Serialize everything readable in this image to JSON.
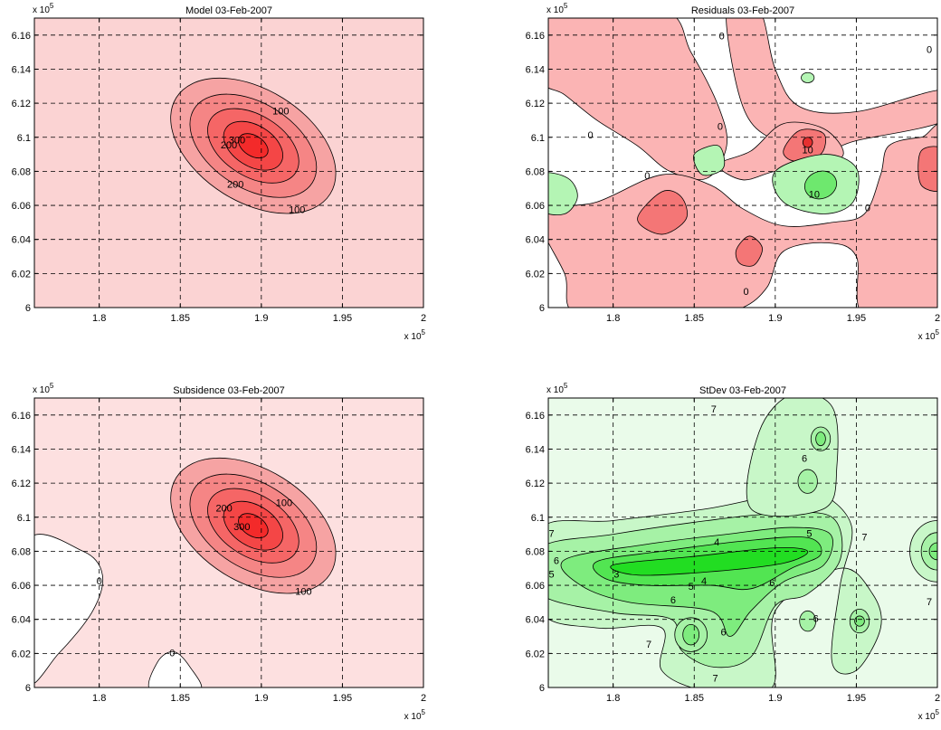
{
  "figure": {
    "panels": [
      {
        "id": "model",
        "title": "Model 03-Feb-2007",
        "fill_base": "#fbd3d3"
      },
      {
        "id": "residuals",
        "title": "Residuals 03-Feb-2007",
        "fill_base": "#ffffff"
      },
      {
        "id": "subsidence",
        "title": "Subsidence 03-Feb-2007",
        "fill_base": "#fde0e0"
      },
      {
        "id": "stdev",
        "title": "StDev 03-Feb-2007",
        "fill_base": "#eafbea"
      }
    ]
  },
  "chart_data": [
    {
      "type": "heatmap",
      "subtype": "filled-contour",
      "title": "Model 03-Feb-2007",
      "xlabel": "",
      "ylabel": "",
      "xlim": [
        1.76,
        2.0
      ],
      "ylim": [
        6.0,
        6.17
      ],
      "x_exponent": "x 10^5",
      "y_exponent": "x 10^5",
      "xticks": [
        "1.8",
        "1.85",
        "1.9",
        "1.95",
        "2"
      ],
      "yticks": [
        "6",
        "6.02",
        "6.04",
        "6.06",
        "6.08",
        "6.1",
        "6.12",
        "6.14",
        "6.16"
      ],
      "grid": true,
      "center": [
        1.895,
        6.095
      ],
      "levels": [
        -100,
        -150,
        -200,
        -250,
        -300
      ],
      "level_colors": [
        "#f6a3a3",
        "#f58585",
        "#f56666",
        "#f44646",
        "#f32a2a"
      ],
      "contour_labels": [
        {
          "text": "100",
          "x": 1.912,
          "y": 6.115
        },
        {
          "text": "200",
          "x": 1.884,
          "y": 6.072
        },
        {
          "text": "100",
          "x": 1.922,
          "y": 6.057
        },
        {
          "text": "300",
          "x": 1.885,
          "y": 6.098
        },
        {
          "text": "200",
          "x": 1.88,
          "y": 6.095
        }
      ]
    },
    {
      "type": "heatmap",
      "subtype": "filled-contour",
      "title": "Residuals 03-Feb-2007",
      "xlabel": "",
      "ylabel": "",
      "xlim": [
        1.76,
        2.0
      ],
      "ylim": [
        6.0,
        6.17
      ],
      "x_exponent": "x 10^5",
      "y_exponent": "x 10^5",
      "xticks": [
        "1.8",
        "1.85",
        "1.9",
        "1.95",
        "2"
      ],
      "yticks": [
        "6",
        "6.02",
        "6.04",
        "6.06",
        "6.08",
        "6.1",
        "6.12",
        "6.14",
        "6.16"
      ],
      "grid": true,
      "positive_color": "#fbb4b4",
      "strong_color": "#f47676",
      "peak_color": "#e53030",
      "negative_color": "#b4f5b4",
      "strong_negative_color": "#6ee86e",
      "contour_labels": [
        {
          "text": "0",
          "x": 1.867,
          "y": 6.159
        },
        {
          "text": "0",
          "x": 1.786,
          "y": 6.101
        },
        {
          "text": "0",
          "x": 1.866,
          "y": 6.106
        },
        {
          "text": "0",
          "x": 1.995,
          "y": 6.151
        },
        {
          "text": "0",
          "x": 1.821,
          "y": 6.077
        },
        {
          "text": "10",
          "x": 1.92,
          "y": 6.092
        },
        {
          "text": "10",
          "x": 1.924,
          "y": 6.066
        },
        {
          "text": "0",
          "x": 1.957,
          "y": 6.058
        },
        {
          "text": "0",
          "x": 1.882,
          "y": 6.009
        }
      ]
    },
    {
      "type": "heatmap",
      "subtype": "filled-contour",
      "title": "Subsidence 03-Feb-2007",
      "xlabel": "",
      "ylabel": "",
      "xlim": [
        1.76,
        2.0
      ],
      "ylim": [
        6.0,
        6.17
      ],
      "x_exponent": "x 10^5",
      "y_exponent": "x 10^5",
      "xticks": [
        "1.8",
        "1.85",
        "1.9",
        "1.95",
        "2"
      ],
      "yticks": [
        "6",
        "6.02",
        "6.04",
        "6.06",
        "6.08",
        "6.1",
        "6.12",
        "6.14",
        "6.16"
      ],
      "grid": true,
      "center": [
        1.895,
        6.095
      ],
      "levels": [
        -100,
        -150,
        -200,
        -250,
        -300
      ],
      "level_colors": [
        "#f6a3a3",
        "#f58585",
        "#f56666",
        "#f44646",
        "#f32a2a"
      ],
      "contour_labels": [
        {
          "text": "100",
          "x": 1.914,
          "y": 6.108
        },
        {
          "text": "200",
          "x": 1.877,
          "y": 6.105
        },
        {
          "text": "300",
          "x": 1.888,
          "y": 6.094
        },
        {
          "text": "100",
          "x": 1.926,
          "y": 6.056
        },
        {
          "text": "0",
          "x": 1.8,
          "y": 6.062
        },
        {
          "text": "0",
          "x": 1.845,
          "y": 6.02
        }
      ]
    },
    {
      "type": "heatmap",
      "subtype": "filled-contour",
      "title": "StDev 03-Feb-2007",
      "xlabel": "",
      "ylabel": "",
      "xlim": [
        1.76,
        2.0
      ],
      "ylim": [
        6.0,
        6.17
      ],
      "x_exponent": "x 10^5",
      "y_exponent": "x 10^5",
      "xticks": [
        "1.8",
        "1.85",
        "1.9",
        "1.95",
        "2"
      ],
      "yticks": [
        "6",
        "6.02",
        "6.04",
        "6.06",
        "6.08",
        "6.1",
        "6.12",
        "6.14",
        "6.16"
      ],
      "grid": true,
      "levels": [
        7,
        6,
        5,
        4,
        3
      ],
      "level_colors": [
        "#c8f7c8",
        "#a6f2a6",
        "#7eec7e",
        "#52e552",
        "#22dd22"
      ],
      "contour_labels": [
        {
          "text": "7",
          "x": 1.762,
          "y": 6.09
        },
        {
          "text": "6",
          "x": 1.765,
          "y": 6.074
        },
        {
          "text": "5",
          "x": 1.762,
          "y": 6.066
        },
        {
          "text": "3",
          "x": 1.802,
          "y": 6.066
        },
        {
          "text": "4",
          "x": 1.864,
          "y": 6.085
        },
        {
          "text": "5",
          "x": 1.848,
          "y": 6.059
        },
        {
          "text": "4",
          "x": 1.856,
          "y": 6.062
        },
        {
          "text": "6",
          "x": 1.837,
          "y": 6.051
        },
        {
          "text": "6",
          "x": 1.868,
          "y": 6.032
        },
        {
          "text": "6",
          "x": 1.898,
          "y": 6.061
        },
        {
          "text": "6",
          "x": 1.918,
          "y": 6.134
        },
        {
          "text": "5",
          "x": 1.921,
          "y": 6.09
        },
        {
          "text": "7",
          "x": 1.862,
          "y": 6.163
        },
        {
          "text": "7",
          "x": 1.955,
          "y": 6.088
        },
        {
          "text": "7",
          "x": 1.995,
          "y": 6.05
        },
        {
          "text": "7",
          "x": 1.822,
          "y": 6.025
        },
        {
          "text": "7",
          "x": 1.863,
          "y": 6.005
        },
        {
          "text": "6",
          "x": 1.925,
          "y": 6.04
        }
      ]
    }
  ]
}
